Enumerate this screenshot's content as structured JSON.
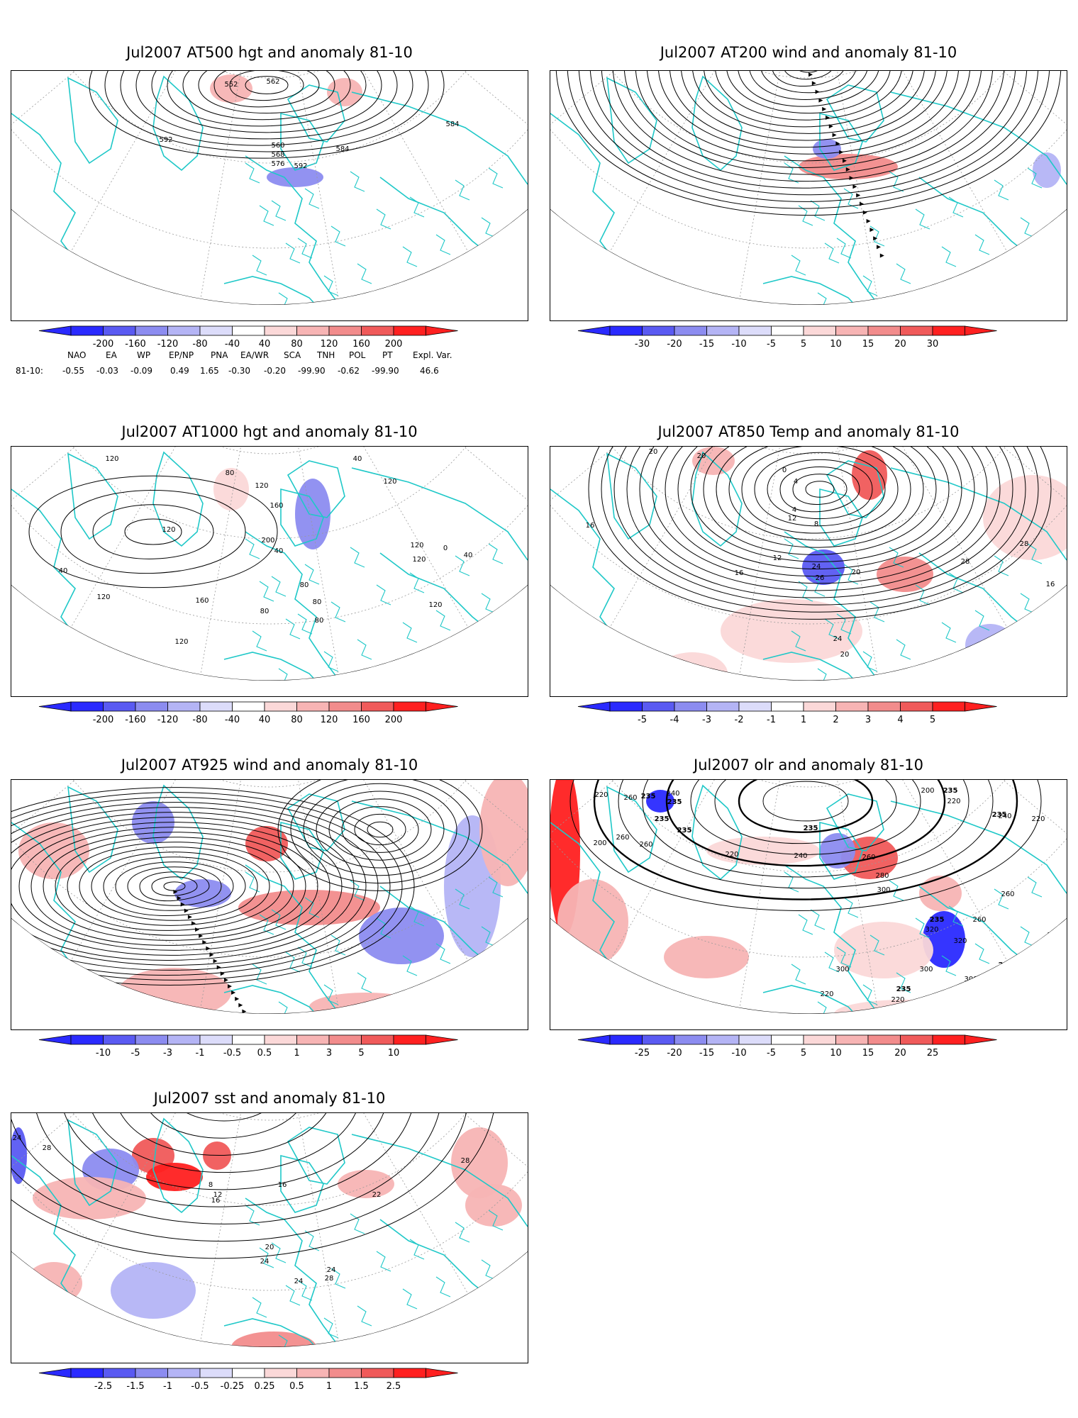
{
  "palette": {
    "neg": [
      "#2a2aff",
      "#5a5af2",
      "#8c8cf0",
      "#b4b4f5",
      "#dcdcfa"
    ],
    "pos": [
      "#fbd8d8",
      "#f7b4b4",
      "#f28c8c",
      "#f05a5a",
      "#ff2020"
    ],
    "map_lines": "#1fc8c8",
    "contour": "#000000",
    "gridline": "#9a9a9a"
  },
  "panels": [
    {
      "id": "at500",
      "title": "Jul2007 AT500 hgt and anomaly 81-10",
      "colorbar": [
        "-200",
        "-160",
        "-120",
        "-80",
        "-40",
        "40",
        "80",
        "120",
        "160",
        "200"
      ],
      "contour_labels": [
        "552",
        "562",
        "560",
        "568",
        "576",
        "584",
        "592",
        "592",
        "584"
      ]
    },
    {
      "id": "at200",
      "title": "Jul2007 AT200 wind and anomaly 81-10",
      "colorbar": [
        "-30",
        "-20",
        "-15",
        "-10",
        "-5",
        "5",
        "10",
        "15",
        "20",
        "30"
      ],
      "contour_labels": []
    },
    {
      "id": "at1000",
      "title": "Jul2007 AT1000 hgt and anomaly 81-10",
      "colorbar": [
        "-200",
        "-160",
        "-120",
        "-80",
        "-40",
        "40",
        "80",
        "120",
        "160",
        "200"
      ],
      "contour_labels": [
        "120",
        "40",
        "80",
        "120",
        "120",
        "160",
        "200",
        "40",
        "80",
        "120",
        "120",
        "0",
        "40",
        "40",
        "120",
        "160",
        "120",
        "80",
        "80",
        "120",
        "120",
        "120",
        "120",
        "80"
      ]
    },
    {
      "id": "at850",
      "title": "Jul2007 AT850 Temp and anomaly 81-10",
      "colorbar": [
        "-5",
        "-4",
        "-3",
        "-2",
        "-1",
        "1",
        "2",
        "3",
        "4",
        "5"
      ],
      "contour_labels": [
        "20",
        "20",
        "0",
        "4",
        "4",
        "12",
        "8",
        "12",
        "16",
        "16",
        "24",
        "20",
        "28",
        "28",
        "26",
        "24",
        "20",
        "16",
        "16"
      ]
    },
    {
      "id": "at925",
      "title": "Jul2007 AT925 wind and anomaly 81-10",
      "colorbar": [
        "-10",
        "-5",
        "-3",
        "-1",
        "-0.5",
        "0.5",
        "1",
        "3",
        "5",
        "10"
      ],
      "contour_labels": []
    },
    {
      "id": "olr",
      "title": "Jul2007 olr and anomaly 81-10",
      "colorbar": [
        "-25",
        "-20",
        "-15",
        "-10",
        "-5",
        "5",
        "10",
        "15",
        "20",
        "25"
      ],
      "contour_labels": [
        "220",
        "260",
        "235",
        "240",
        "235",
        "200",
        "260",
        "260",
        "235",
        "235",
        "220",
        "235",
        "240",
        "260",
        "280",
        "300",
        "320",
        "320",
        "235",
        "260",
        "300",
        "300",
        "235",
        "260",
        "220",
        "200",
        "220",
        "235",
        "235",
        "240",
        "220",
        "260",
        "240",
        "235",
        "300",
        "220",
        "235",
        "235",
        "260"
      ]
    },
    {
      "id": "sst",
      "title": "Jul2007 sst and anomaly 81-10",
      "colorbar": [
        "-2.5",
        "-1.5",
        "-1",
        "-0.5",
        "-0.25",
        "0.25",
        "0.5",
        "1",
        "1.5",
        "2.5"
      ],
      "contour_labels": [
        "24",
        "28",
        "16",
        "8",
        "12",
        "16",
        "20",
        "24",
        "28",
        "24",
        "28",
        "22",
        "24"
      ]
    }
  ],
  "teleconnection": {
    "headers": [
      "NAO",
      "EA",
      "WP",
      "EP/NP",
      "PNA",
      "EA/WR",
      "SCA",
      "TNH",
      "POL",
      "PT",
      "Expl. Var."
    ],
    "row_label": "81-10:",
    "values": [
      "-0.55",
      "-0.03",
      "-0.09",
      "0.49",
      "1.65",
      "-0.30",
      "-0.20",
      "-99.90",
      "-0.62",
      "-99.90",
      "46.6"
    ]
  }
}
